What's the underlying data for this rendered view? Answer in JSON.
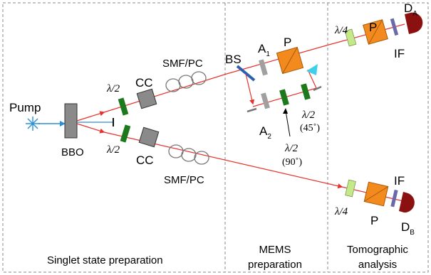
{
  "labels": {
    "pump": "Pump",
    "bbo": "BBO",
    "hwp_top": "λ/2",
    "hwp_bottom": "λ/2",
    "cc_top": "CC",
    "cc_bottom": "CC",
    "smf_top": "SMF/PC",
    "smf_bottom": "SMF/PC",
    "bs": "BS",
    "a1": "A",
    "a1_sub": "1",
    "a2": "A",
    "a2_sub": "2",
    "p_mems": "P",
    "hwp_45": "λ/2",
    "hwp_45_angle": "(45˚)",
    "hwp_90": "λ/2",
    "hwp_90_angle": "(90˚)",
    "qwp_top": "λ/4",
    "qwp_bottom": "λ/4",
    "p_top": "P",
    "p_bottom": "P",
    "if_top": "IF",
    "if_bottom": "IF",
    "da": "D",
    "da_sub": "A",
    "db": "D",
    "db_sub": "B"
  },
  "sections": {
    "singlet": "Singlet state preparation",
    "mems_line1": "MEMS",
    "mems_line2": "preparation",
    "tomo_line1": "Tomographic",
    "tomo_line2": "analysis"
  },
  "colors": {
    "beam": "#e8322b",
    "pump_beam": "#2a8fd6",
    "hwp": "#1c7a1c",
    "cc": "#8a8a8a",
    "bbo": "#8a8a8a",
    "polarizer": "#f28a1e",
    "qwp": "#c5e88a",
    "filter": "#6b6aa8",
    "detector": "#8b1010",
    "bs": "#2d5fb0",
    "attenuator": "#a0a0a0",
    "mirror": "#777777",
    "triangle": "#3fcfe8"
  }
}
